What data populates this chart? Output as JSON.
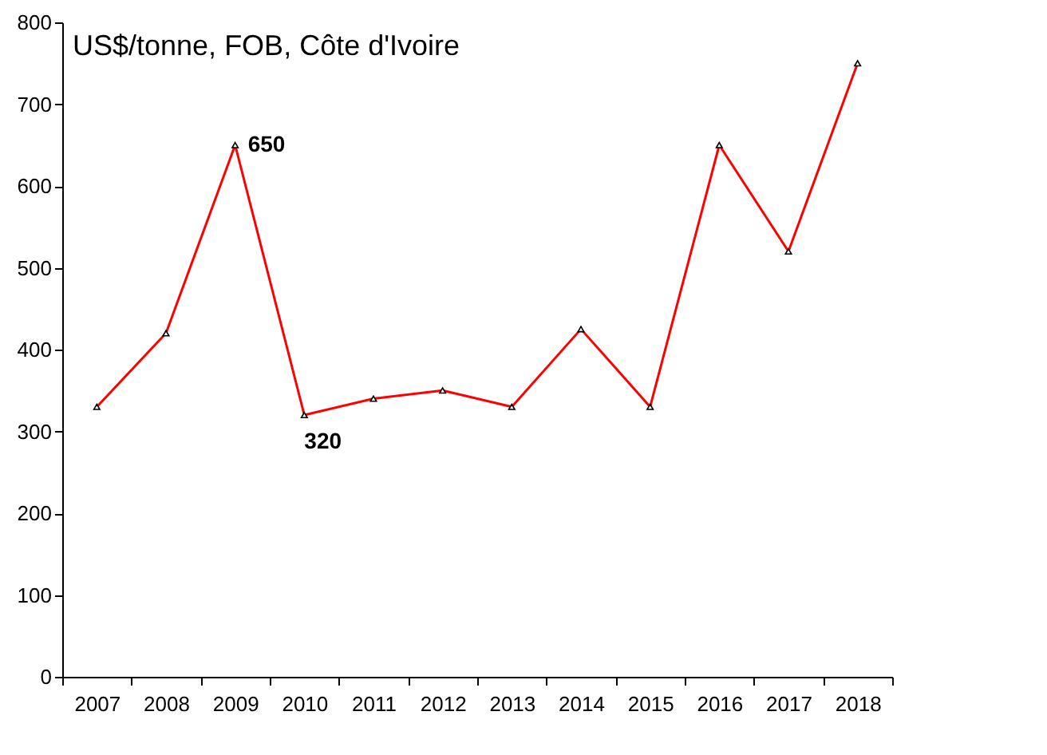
{
  "chart_data": {
    "type": "line",
    "ylabel": "US$/tonne, FOB, Côte d'Ivoire",
    "categories": [
      "2007",
      "2008",
      "2009",
      "2010",
      "2011",
      "2012",
      "2013",
      "2014",
      "2015",
      "2016",
      "2017",
      "2018"
    ],
    "series": [
      {
        "color": "#ff0000",
        "values": [
          330,
          420,
          650,
          320,
          340,
          350,
          330,
          425,
          330,
          650,
          520,
          750
        ]
      }
    ],
    "ylim": [
      0,
      800
    ],
    "yticks": [
      0,
      100,
      200,
      300,
      400,
      500,
      600,
      700,
      800
    ],
    "grid": false,
    "legend": false,
    "marker": "triangle",
    "line_style": "solid",
    "annotations": [
      {
        "text": "650",
        "x": "2009",
        "y": 650
      },
      {
        "text": "320",
        "x": "2010",
        "y": 320
      }
    ]
  }
}
